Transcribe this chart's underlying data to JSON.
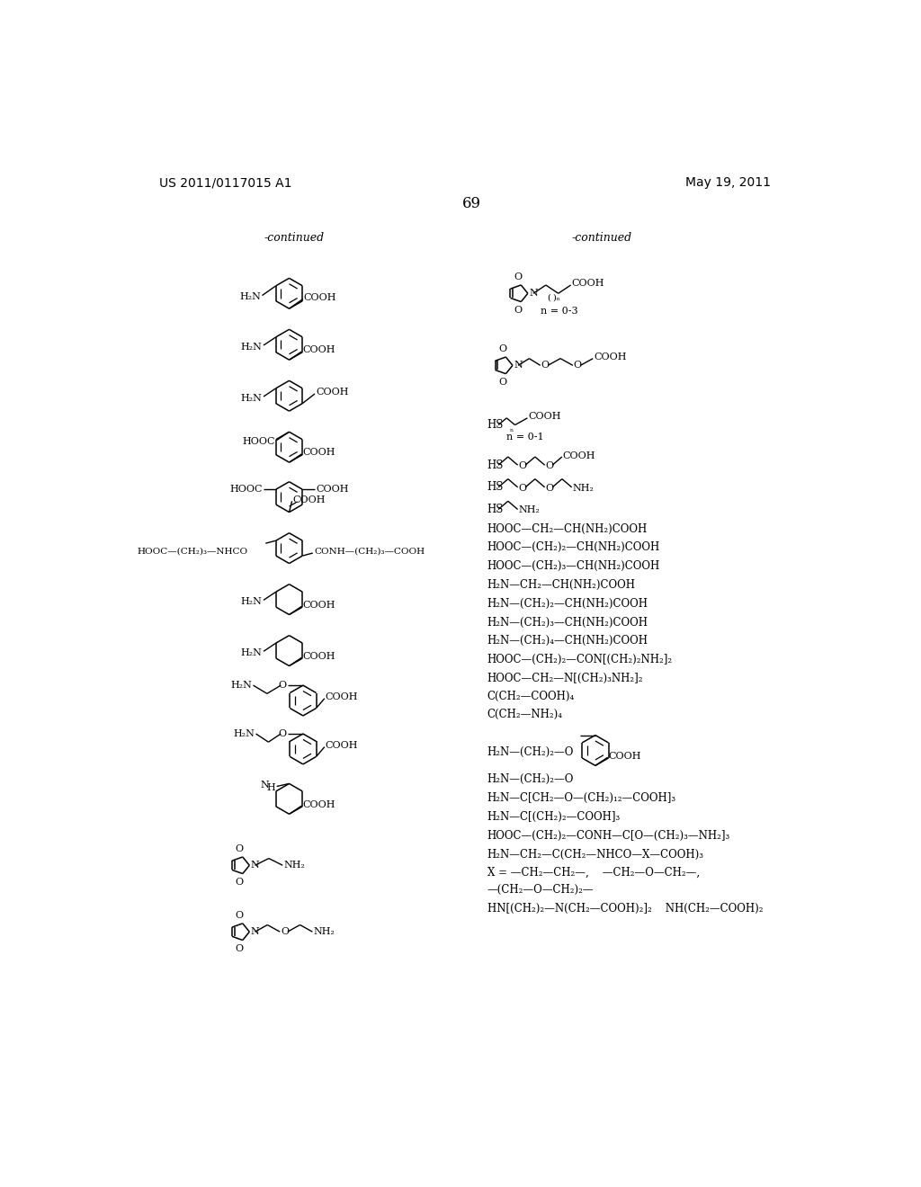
{
  "page_number": "69",
  "patent_number": "US 2011/0117015 A1",
  "patent_date": "May 19, 2011",
  "bg_color": "#ffffff",
  "figsize": [
    10.24,
    13.2
  ],
  "dpi": 100
}
